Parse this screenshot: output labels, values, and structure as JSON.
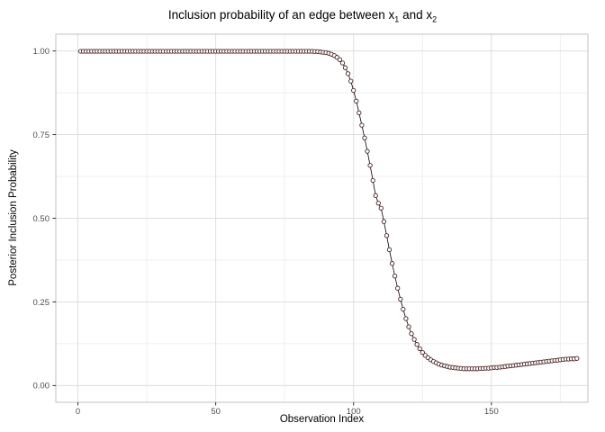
{
  "chart_data": {
    "type": "line",
    "title": "Inclusion probability of an edge between x1 and x2",
    "title_parts": {
      "prefix": "Inclusion probability of an edge between x",
      "sub1": "1",
      "mid": " and x",
      "sub2": "2"
    },
    "xlabel": "Observation Index",
    "ylabel": "Posterior Inclusion Probability",
    "xlim": [
      -8,
      185
    ],
    "ylim": [
      -0.05,
      1.05
    ],
    "x_ticks": [
      0,
      50,
      100,
      150
    ],
    "x_tick_labels": [
      "0",
      "50",
      "100",
      "150"
    ],
    "x_minor_ticks": [
      25,
      75,
      125,
      175
    ],
    "y_ticks": [
      0,
      0.25,
      0.5,
      0.75,
      1
    ],
    "y_tick_labels": [
      "0.00",
      "0.25",
      "0.50",
      "0.75",
      "1.00"
    ],
    "y_minor_ticks": [
      0.125,
      0.375,
      0.625,
      0.875
    ],
    "marker": "open-circle",
    "grid": "major+minor",
    "legend": "none",
    "colors": {
      "line": "#000000",
      "point": "#4a2323",
      "point_fill": "#ffffff",
      "grid_major": "#dedede",
      "grid_minor": "#efefef",
      "panel_border": "#c2c2c2",
      "panel_bg": "#ffffff",
      "tick": "#333333",
      "tick_label": "#4d4d4d"
    },
    "x": [
      1,
      2,
      3,
      4,
      5,
      6,
      7,
      8,
      9,
      10,
      11,
      12,
      13,
      14,
      15,
      16,
      17,
      18,
      19,
      20,
      21,
      22,
      23,
      24,
      25,
      26,
      27,
      28,
      29,
      30,
      31,
      32,
      33,
      34,
      35,
      36,
      37,
      38,
      39,
      40,
      41,
      42,
      43,
      44,
      45,
      46,
      47,
      48,
      49,
      50,
      51,
      52,
      53,
      54,
      55,
      56,
      57,
      58,
      59,
      60,
      61,
      62,
      63,
      64,
      65,
      66,
      67,
      68,
      69,
      70,
      71,
      72,
      73,
      74,
      75,
      76,
      77,
      78,
      79,
      80,
      81,
      82,
      83,
      84,
      85,
      86,
      87,
      88,
      89,
      90,
      91,
      92,
      93,
      94,
      95,
      96,
      97,
      98,
      99,
      100,
      101,
      102,
      103,
      104,
      105,
      106,
      107,
      108,
      109,
      110,
      111,
      112,
      113,
      114,
      115,
      116,
      117,
      118,
      119,
      120,
      121,
      122,
      123,
      124,
      125,
      126,
      127,
      128,
      129,
      130,
      131,
      132,
      133,
      134,
      135,
      136,
      137,
      138,
      139,
      140,
      141,
      142,
      143,
      144,
      145,
      146,
      147,
      148,
      149,
      150,
      151,
      152,
      153,
      154,
      155,
      156,
      157,
      158,
      159,
      160,
      161,
      162,
      163,
      164,
      165,
      166,
      167,
      168,
      169,
      170,
      171,
      172,
      173,
      174,
      175,
      176,
      177,
      178,
      179,
      180,
      181
    ],
    "y": [
      0.999,
      0.999,
      0.999,
      0.999,
      0.999,
      0.999,
      0.999,
      0.999,
      0.999,
      0.999,
      0.999,
      0.999,
      0.999,
      0.999,
      0.999,
      0.999,
      0.999,
      0.999,
      0.999,
      0.999,
      0.999,
      0.999,
      0.999,
      0.999,
      0.999,
      0.999,
      0.999,
      0.999,
      0.999,
      0.999,
      0.999,
      0.999,
      0.999,
      0.999,
      0.999,
      0.999,
      0.999,
      0.999,
      0.999,
      0.999,
      0.999,
      0.999,
      0.999,
      0.999,
      0.999,
      0.999,
      0.999,
      0.999,
      0.999,
      0.999,
      0.999,
      0.999,
      0.999,
      0.999,
      0.999,
      0.999,
      0.999,
      0.999,
      0.999,
      0.999,
      0.999,
      0.999,
      0.999,
      0.999,
      0.999,
      0.999,
      0.999,
      0.999,
      0.999,
      0.999,
      0.999,
      0.999,
      0.999,
      0.999,
      0.999,
      0.999,
      0.999,
      0.999,
      0.999,
      0.999,
      0.999,
      0.999,
      0.999,
      0.999,
      0.999,
      0.998,
      0.998,
      0.997,
      0.996,
      0.995,
      0.993,
      0.99,
      0.986,
      0.981,
      0.974,
      0.964,
      0.95,
      0.932,
      0.91,
      0.882,
      0.85,
      0.815,
      0.778,
      0.74,
      0.7,
      0.658,
      0.613,
      0.568,
      0.545,
      0.53,
      0.49,
      0.448,
      0.406,
      0.365,
      0.327,
      0.291,
      0.258,
      0.228,
      0.2,
      0.176,
      0.155,
      0.138,
      0.123,
      0.11,
      0.099,
      0.09,
      0.083,
      0.077,
      0.072,
      0.068,
      0.064,
      0.061,
      0.059,
      0.057,
      0.055,
      0.054,
      0.053,
      0.052,
      0.051,
      0.05,
      0.05,
      0.05,
      0.05,
      0.05,
      0.05,
      0.051,
      0.051,
      0.052,
      0.052,
      0.053,
      0.054,
      0.054,
      0.055,
      0.056,
      0.057,
      0.058,
      0.059,
      0.06,
      0.061,
      0.062,
      0.063,
      0.064,
      0.065,
      0.066,
      0.067,
      0.068,
      0.069,
      0.07,
      0.071,
      0.072,
      0.073,
      0.074,
      0.075,
      0.076,
      0.077,
      0.078,
      0.079,
      0.079,
      0.08,
      0.08,
      0.081
    ]
  }
}
